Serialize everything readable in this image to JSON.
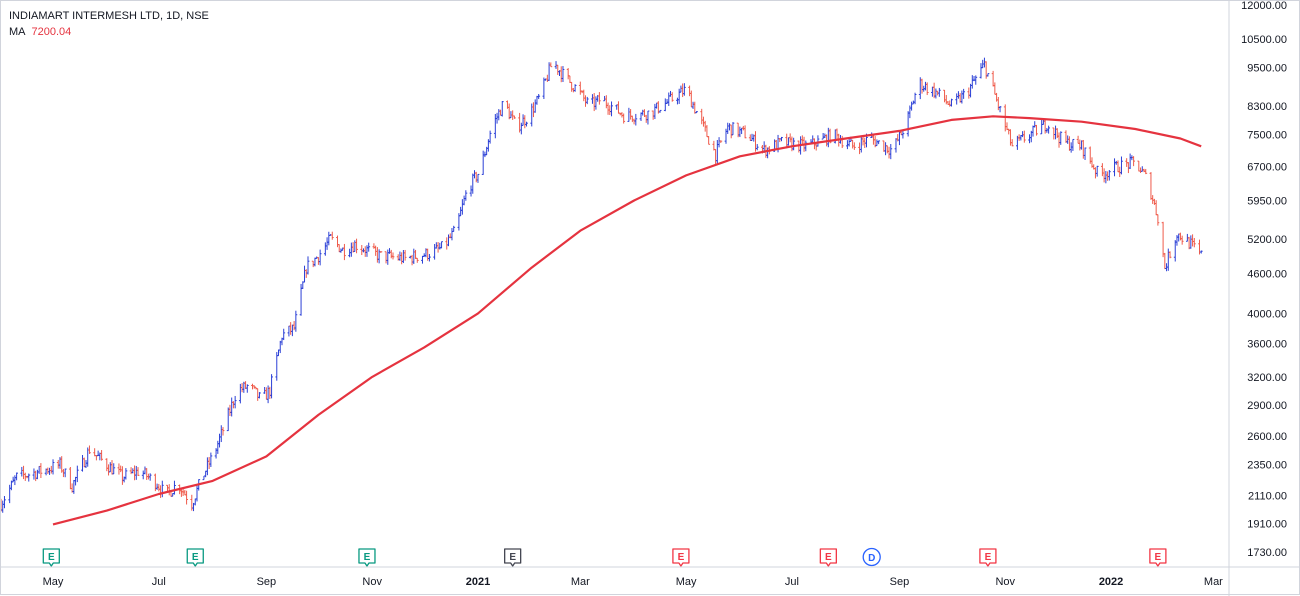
{
  "legend": {
    "symbol": "INDIAMART INTERMESH LTD, 1D, NSE",
    "ma_label": "MA",
    "ma_value": "7200.04"
  },
  "colors": {
    "up_bar": "#2a3fd6",
    "down_bar": "#ef5a4a",
    "ma_line": "#e5333f",
    "axis_text": "#131722",
    "axis_line": "#d1d4dc",
    "earnings_green": "#089981",
    "earnings_red": "#f23645",
    "earnings_gray": "#434651",
    "dividend_blue": "#2962ff"
  },
  "chart_data": {
    "type": "ohlc",
    "title": "INDIAMART INTERMESH LTD, 1D, NSE",
    "scale": "log",
    "ylim": [
      1640,
      12000
    ],
    "y_ticks": [
      12000,
      10500,
      9500,
      8300,
      7500,
      6700,
      5950,
      5200,
      4600,
      4000,
      3600,
      3200,
      2900,
      2600,
      2350,
      2110,
      1910,
      1730
    ],
    "y_tick_labels": [
      "12000.00",
      "10500.00",
      "9500.00",
      "8300.00",
      "7500.00",
      "6700.00",
      "5950.00",
      "5200.00",
      "4600.00",
      "4000.00",
      "3600.00",
      "3200.00",
      "2900.00",
      "2600.00",
      "2350.00",
      "2110.00",
      "1910.00",
      "1730.00"
    ],
    "x_ticks": [
      {
        "label": "May",
        "date": "2020-05-01"
      },
      {
        "label": "Jul",
        "date": "2020-07-01"
      },
      {
        "label": "Sep",
        "date": "2020-09-01"
      },
      {
        "label": "Nov",
        "date": "2020-11-01"
      },
      {
        "label": "2021",
        "date": "2021-01-01"
      },
      {
        "label": "Mar",
        "date": "2021-03-01"
      },
      {
        "label": "May",
        "date": "2021-05-01"
      },
      {
        "label": "Jul",
        "date": "2021-07-01"
      },
      {
        "label": "Sep",
        "date": "2021-09-01"
      },
      {
        "label": "Nov",
        "date": "2021-11-01"
      },
      {
        "label": "2022",
        "date": "2022-01-01"
      },
      {
        "label": "Mar",
        "date": "2022-03-01"
      }
    ],
    "xlim": [
      "2020-04-01",
      "2022-03-10"
    ],
    "price_path": [
      [
        "2020-04-01",
        2050
      ],
      [
        "2020-04-10",
        2250
      ],
      [
        "2020-04-25",
        2300
      ],
      [
        "2020-05-05",
        2350
      ],
      [
        "2020-05-12",
        2180
      ],
      [
        "2020-05-22",
        2480
      ],
      [
        "2020-06-01",
        2350
      ],
      [
        "2020-06-10",
        2250
      ],
      [
        "2020-06-20",
        2300
      ],
      [
        "2020-06-30",
        2200
      ],
      [
        "2020-07-05",
        2110
      ],
      [
        "2020-07-12",
        2200
      ],
      [
        "2020-07-20",
        2050
      ],
      [
        "2020-07-26",
        2250
      ],
      [
        "2020-08-02",
        2450
      ],
      [
        "2020-08-08",
        2700
      ],
      [
        "2020-08-15",
        3050
      ],
      [
        "2020-08-22",
        3100
      ],
      [
        "2020-08-29",
        2950
      ],
      [
        "2020-09-03",
        3050
      ],
      [
        "2020-09-10",
        3700
      ],
      [
        "2020-09-17",
        3800
      ],
      [
        "2020-09-24",
        4700
      ],
      [
        "2020-10-01",
        4900
      ],
      [
        "2020-10-08",
        5200
      ],
      [
        "2020-10-15",
        5000
      ],
      [
        "2020-10-22",
        5100
      ],
      [
        "2020-11-05",
        4900
      ],
      [
        "2020-11-20",
        4850
      ],
      [
        "2020-12-05",
        4950
      ],
      [
        "2020-12-12",
        5050
      ],
      [
        "2020-12-19",
        5350
      ],
      [
        "2020-12-26",
        6200
      ],
      [
        "2021-01-02",
        6600
      ],
      [
        "2021-01-09",
        7700
      ],
      [
        "2021-01-16",
        8400
      ],
      [
        "2021-01-23",
        7700
      ],
      [
        "2021-01-30",
        8000
      ],
      [
        "2021-02-06",
        8600
      ],
      [
        "2021-02-13",
        9700
      ],
      [
        "2021-02-20",
        9200
      ],
      [
        "2021-02-27",
        8800
      ],
      [
        "2021-03-06",
        8300
      ],
      [
        "2021-03-13",
        8500
      ],
      [
        "2021-03-27",
        8000
      ],
      [
        "2021-04-10",
        8100
      ],
      [
        "2021-04-20",
        8400
      ],
      [
        "2021-05-01",
        8800
      ],
      [
        "2021-05-10",
        7800
      ],
      [
        "2021-05-18",
        7000
      ],
      [
        "2021-05-25",
        7700
      ],
      [
        "2021-06-05",
        7500
      ],
      [
        "2021-06-15",
        7100
      ],
      [
        "2021-06-25",
        7300
      ],
      [
        "2021-07-10",
        7200
      ],
      [
        "2021-07-25",
        7500
      ],
      [
        "2021-08-05",
        7200
      ],
      [
        "2021-08-15",
        7400
      ],
      [
        "2021-08-28",
        7100
      ],
      [
        "2021-09-05",
        7800
      ],
      [
        "2021-09-12",
        9000
      ],
      [
        "2021-09-22",
        8700
      ],
      [
        "2021-10-01",
        8300
      ],
      [
        "2021-10-10",
        8700
      ],
      [
        "2021-10-20",
        9600
      ],
      [
        "2021-10-28",
        8300
      ],
      [
        "2021-11-05",
        7200
      ],
      [
        "2021-11-15",
        7500
      ],
      [
        "2021-11-25",
        7800
      ],
      [
        "2021-12-05",
        7300
      ],
      [
        "2021-12-15",
        7200
      ],
      [
        "2021-12-25",
        6500
      ],
      [
        "2022-01-05",
        6700
      ],
      [
        "2022-01-15",
        6800
      ],
      [
        "2022-01-22",
        6400
      ],
      [
        "2022-01-28",
        5600
      ],
      [
        "2022-02-01",
        4700
      ],
      [
        "2022-02-08",
        5300
      ],
      [
        "2022-02-16",
        5100
      ],
      [
        "2022-02-22",
        4900
      ]
    ],
    "ma_series": {
      "name": "MA",
      "last_value": 7200.04,
      "points": [
        [
          "2020-05-01",
          1905
        ],
        [
          "2020-06-01",
          2000
        ],
        [
          "2020-07-01",
          2120
        ],
        [
          "2020-08-01",
          2220
        ],
        [
          "2020-09-01",
          2420
        ],
        [
          "2020-10-01",
          2800
        ],
        [
          "2020-11-01",
          3200
        ],
        [
          "2020-12-01",
          3550
        ],
        [
          "2021-01-01",
          4000
        ],
        [
          "2021-02-01",
          4700
        ],
        [
          "2021-03-01",
          5350
        ],
        [
          "2021-04-01",
          5950
        ],
        [
          "2021-05-01",
          6500
        ],
        [
          "2021-06-01",
          6950
        ],
        [
          "2021-07-01",
          7200
        ],
        [
          "2021-08-01",
          7400
        ],
        [
          "2021-09-01",
          7600
        ],
        [
          "2021-10-01",
          7900
        ],
        [
          "2021-10-25",
          8000
        ],
        [
          "2021-11-15",
          7950
        ],
        [
          "2021-12-15",
          7850
        ],
        [
          "2022-01-15",
          7650
        ],
        [
          "2022-02-10",
          7400
        ],
        [
          "2022-02-22",
          7200
        ]
      ]
    },
    "event_markers": [
      {
        "type": "earnings",
        "label": "E",
        "date": "2020-04-30",
        "color": "earnings_green"
      },
      {
        "type": "earnings",
        "label": "E",
        "date": "2020-07-22",
        "color": "earnings_green"
      },
      {
        "type": "earnings",
        "label": "E",
        "date": "2020-10-29",
        "color": "earnings_green"
      },
      {
        "type": "earnings",
        "label": "E",
        "date": "2021-01-21",
        "color": "earnings_gray"
      },
      {
        "type": "earnings",
        "label": "E",
        "date": "2021-04-28",
        "color": "earnings_red"
      },
      {
        "type": "earnings",
        "label": "E",
        "date": "2021-07-22",
        "color": "earnings_red"
      },
      {
        "type": "dividend",
        "label": "D",
        "date": "2021-08-16",
        "color": "dividend_blue"
      },
      {
        "type": "earnings",
        "label": "E",
        "date": "2021-10-22",
        "color": "earnings_red"
      },
      {
        "type": "earnings",
        "label": "E",
        "date": "2022-01-28",
        "color": "earnings_red"
      }
    ]
  }
}
